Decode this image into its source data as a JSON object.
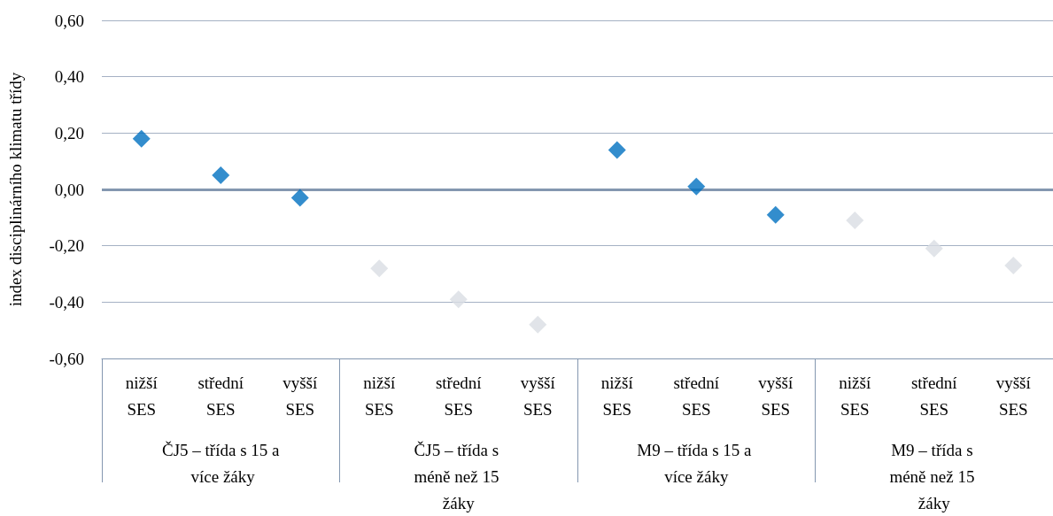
{
  "chart_data": {
    "type": "scatter",
    "ylabel": "index disciplinárního klimatu třídy",
    "categories": [
      "nižší SES",
      "střední SES",
      "vyšší SES",
      "nižší SES",
      "střední SES",
      "vyšší SES",
      "nižší SES",
      "střední SES",
      "vyšší SES",
      "nižší SES",
      "střední SES",
      "vyšší SES"
    ],
    "values": [
      0.18,
      0.05,
      -0.03,
      -0.28,
      -0.39,
      -0.48,
      0.14,
      0.01,
      -0.09,
      -0.11,
      -0.21,
      -0.27
    ],
    "colors": [
      "#0070c0",
      "#0070c0",
      "#0070c0",
      "#d9dde3",
      "#d9dde3",
      "#d9dde3",
      "#0070c0",
      "#0070c0",
      "#0070c0",
      "#d9dde3",
      "#d9dde3",
      "#d9dde3"
    ],
    "annotations": [
      "ČJ5 – třída s 15 a více žáky",
      "ČJ5 – třída s méně než 15 žáky",
      "M9 – třída s 15 a více žáky",
      "M9 – třída s méně než 15 žáky"
    ],
    "ylim": [
      -0.6,
      0.6
    ],
    "yticks": [
      {
        "value": -0.6,
        "label": "-0,60"
      },
      {
        "value": -0.4,
        "label": "-0,40"
      },
      {
        "value": -0.2,
        "label": "-0,20"
      },
      {
        "value": 0,
        "label": "0,00"
      },
      {
        "value": 0.2,
        "label": "0,20"
      },
      {
        "value": 0.4,
        "label": "0,40"
      },
      {
        "value": 0.6,
        "label": "0,60"
      }
    ],
    "ref_lines": [
      {
        "axis": "y",
        "value": 0,
        "color": "#8497b0"
      }
    ],
    "grid": "y",
    "marker": "diamond"
  }
}
